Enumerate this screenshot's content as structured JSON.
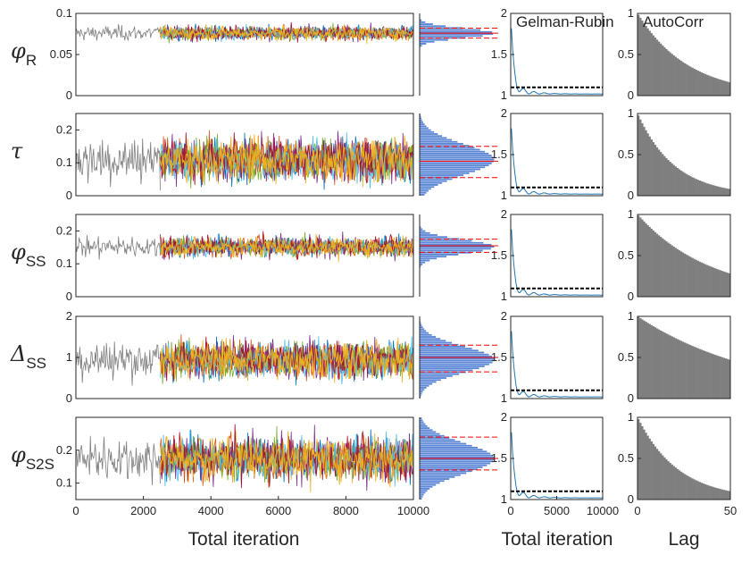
{
  "colors": {
    "burnin": "#7f7f7f",
    "chains": [
      "#0072BD",
      "#D95319",
      "#EDB120",
      "#7E2F8E",
      "#77AC30",
      "#4DBEEE",
      "#A2142F"
    ],
    "histogram": "#5b86d6",
    "rhat_line": "#1f77b4",
    "threshold": "#000000",
    "quantile": "#ff0000",
    "autocorr": "#7f7f7f"
  },
  "chart_data": [
    {
      "type": "line",
      "panel": "trace",
      "xlabel": "Total iteration",
      "xlim": [
        0,
        10000
      ],
      "xticks": [
        0,
        2000,
        4000,
        6000,
        8000,
        10000
      ],
      "burnin_end": 2500,
      "rows": [
        {
          "key": "phi_R",
          "symbol": "φ",
          "subscript": "R",
          "ylim": [
            0,
            0.1
          ],
          "yticks": [
            "0",
            "0.05",
            "0.1"
          ],
          "ytick_values": [
            0,
            0.05,
            0.1
          ],
          "center": 0.076,
          "spread": 0.014,
          "hist_edge_frac": 0.25
        },
        {
          "key": "tau",
          "symbol": "τ",
          "subscript": "",
          "ylim": [
            0,
            0.25
          ],
          "yticks": [
            "0",
            "0.1",
            "0.2"
          ],
          "ytick_values": [
            0,
            0.1,
            0.2
          ],
          "center": 0.11,
          "spread": 0.11,
          "hist_edge_frac": 0.8
        },
        {
          "key": "phi_SS",
          "symbol": "φ",
          "subscript": "SS",
          "ylim": [
            0,
            0.25
          ],
          "yticks": [
            "0",
            "0.1",
            "0.2"
          ],
          "ytick_values": [
            0,
            0.1,
            0.2
          ],
          "center": 0.152,
          "spread": 0.05,
          "hist_edge_frac": 0.45
        },
        {
          "key": "delta_SS",
          "symbol": "Δ",
          "subscript": "SS",
          "ylim": [
            0,
            2
          ],
          "yticks": [
            "0",
            "1",
            "2"
          ],
          "ytick_values": [
            0,
            1,
            2
          ],
          "center": 0.95,
          "spread": 0.75,
          "hist_edge_frac": 0.55
        },
        {
          "key": "phi_S2S",
          "symbol": "φ",
          "subscript": "S2S",
          "ylim": [
            0.05,
            0.3
          ],
          "yticks": [
            "0.1",
            "0.2"
          ],
          "ytick_values": [
            0.1,
            0.2
          ],
          "center": 0.175,
          "spread": 0.11,
          "hist_edge_frac": 0.95
        }
      ]
    },
    {
      "type": "bar",
      "panel": "histogram",
      "title": "",
      "note": "horizontal posterior histograms with red dashed quantile lines",
      "quantiles": [
        [
          0.07,
          0.076,
          0.082
        ],
        [
          0.055,
          0.105,
          0.15
        ],
        [
          0.135,
          0.155,
          0.175
        ],
        [
          0.65,
          1.0,
          1.3
        ],
        [
          0.14,
          0.175,
          0.24
        ]
      ]
    },
    {
      "type": "line",
      "panel": "gelman-rubin",
      "title": "Gelman-Rubin",
      "xlabel": "Total iteration",
      "xlim": [
        0,
        10000
      ],
      "xticks": [
        "0",
        "5000",
        "10000"
      ],
      "xtick_values": [
        0,
        5000,
        10000
      ],
      "ylim": [
        1,
        2
      ],
      "yticks": [
        "1",
        "1.5",
        "2"
      ],
      "ytick_values": [
        1,
        1.5,
        2
      ],
      "threshold": 1.1
    },
    {
      "type": "bar",
      "panel": "autocorr",
      "title": "AutoCorr",
      "xlabel": "Lag",
      "xlim": [
        0,
        50
      ],
      "xticks": [
        "0",
        "50"
      ],
      "xtick_values": [
        0,
        50
      ],
      "ylim": [
        0,
        1
      ],
      "yticks": [
        "0",
        "0.5",
        "1"
      ],
      "ytick_values": [
        0,
        0.5,
        1
      ],
      "lags": 50,
      "tail_values": [
        0.16,
        0.08,
        0.28,
        0.47,
        0.1
      ]
    }
  ]
}
